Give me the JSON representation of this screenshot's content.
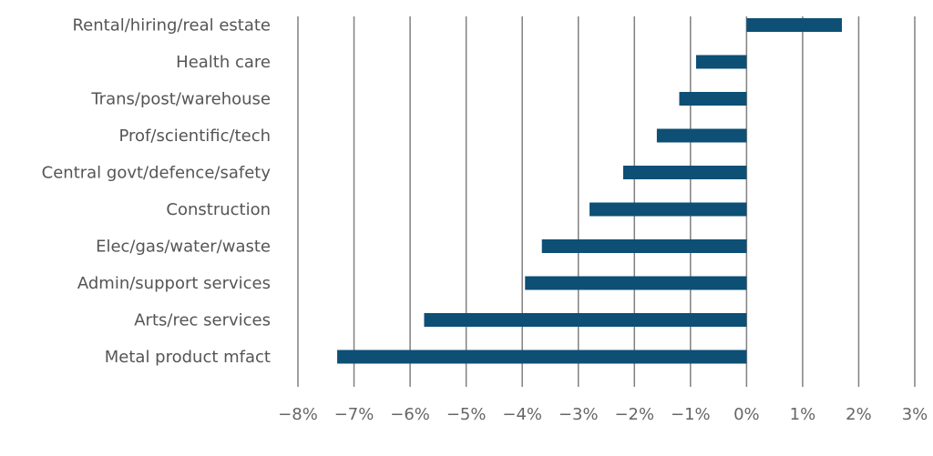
{
  "chart_data": {
    "type": "bar",
    "orientation": "horizontal",
    "title": "",
    "xlabel": "",
    "ylabel": "",
    "categories": [
      "Rental/hiring/real estate",
      "Health care",
      "Trans/post/warehouse",
      "Prof/scientific/tech",
      "Central govt/defence/safety",
      "Construction",
      "Elec/gas/water/waste",
      "Admin/support services",
      "Arts/rec services",
      "Metal product mfact"
    ],
    "values": [
      1.7,
      -0.9,
      -1.2,
      -1.6,
      -2.2,
      -2.8,
      -3.65,
      -3.95,
      -5.75,
      -7.3
    ],
    "xlim": [
      -8,
      3
    ],
    "xticks": [
      -8,
      -7,
      -6,
      -5,
      -4,
      -3,
      -2,
      -1,
      0,
      1,
      2,
      3
    ],
    "xtick_labels": [
      "−8%",
      "−7%",
      "−6%",
      "−5%",
      "−4%",
      "−3%",
      "−2%",
      "−1%",
      "0%",
      "1%",
      "2%",
      "3%"
    ],
    "grid": "vertical",
    "legend": "none",
    "bar_color": "#0d4f75"
  }
}
